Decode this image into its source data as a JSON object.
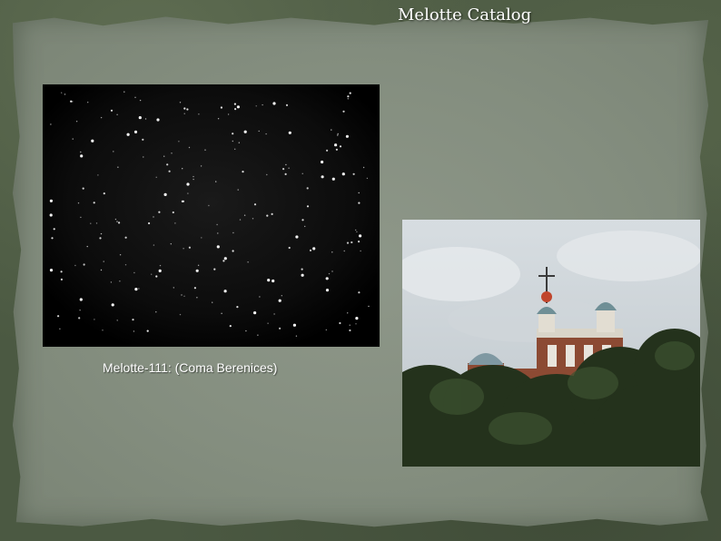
{
  "slide": {
    "title": "Melotte Catalog",
    "caption": "Melotte-111: (Coma Berenices)"
  },
  "colors": {
    "frame": "#4b5942",
    "paper": "#8a9385",
    "title_text": "#ffffff",
    "starfield_bg": "#000000"
  },
  "images": {
    "starfield": "star-cluster-photo",
    "observatory": "royal-observatory-photo"
  }
}
